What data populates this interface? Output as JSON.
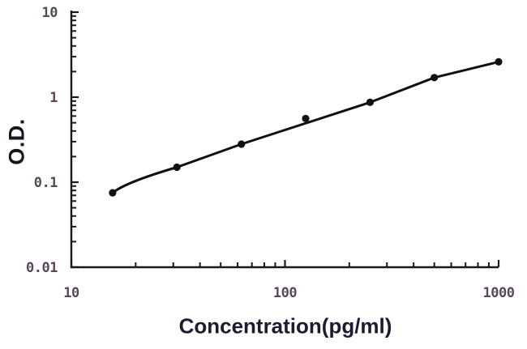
{
  "chart_data": {
    "type": "scatter",
    "title": "",
    "xlabel": "Concentration(pg/ml)",
    "ylabel": "O.D.",
    "x_scale": "log",
    "y_scale": "log",
    "xlim": [
      10,
      1000
    ],
    "ylim": [
      0.01,
      10
    ],
    "x_ticks": [
      {
        "value": 10,
        "label": "10"
      },
      {
        "value": 100,
        "label": "100"
      },
      {
        "value": 1000,
        "label": "1000"
      }
    ],
    "y_ticks": [
      {
        "value": 10,
        "label": "10"
      },
      {
        "value": 1,
        "label": "1"
      },
      {
        "value": 0.1,
        "label": "0.1"
      },
      {
        "value": 0.01,
        "label": "0.01"
      }
    ],
    "minor_ticks": true,
    "legend": "none",
    "grid": "off",
    "points": [
      {
        "concentration": 15.6,
        "od": 0.075
      },
      {
        "concentration": 31.2,
        "od": 0.15
      },
      {
        "concentration": 62.5,
        "od": 0.28
      },
      {
        "concentration": 125,
        "od": 0.56
      },
      {
        "concentration": 250,
        "od": 0.87
      },
      {
        "concentration": 500,
        "od": 1.7
      },
      {
        "concentration": 1000,
        "od": 2.6
      }
    ],
    "trend_line_point_indices": [
      0,
      1,
      2,
      4,
      5,
      6
    ],
    "colors": {
      "background": "#ffffff",
      "axis": "#1a1a1a",
      "line": "#111111",
      "point": "#111111",
      "tick_label": "#5a475a",
      "axis_title": "#16161f"
    }
  }
}
